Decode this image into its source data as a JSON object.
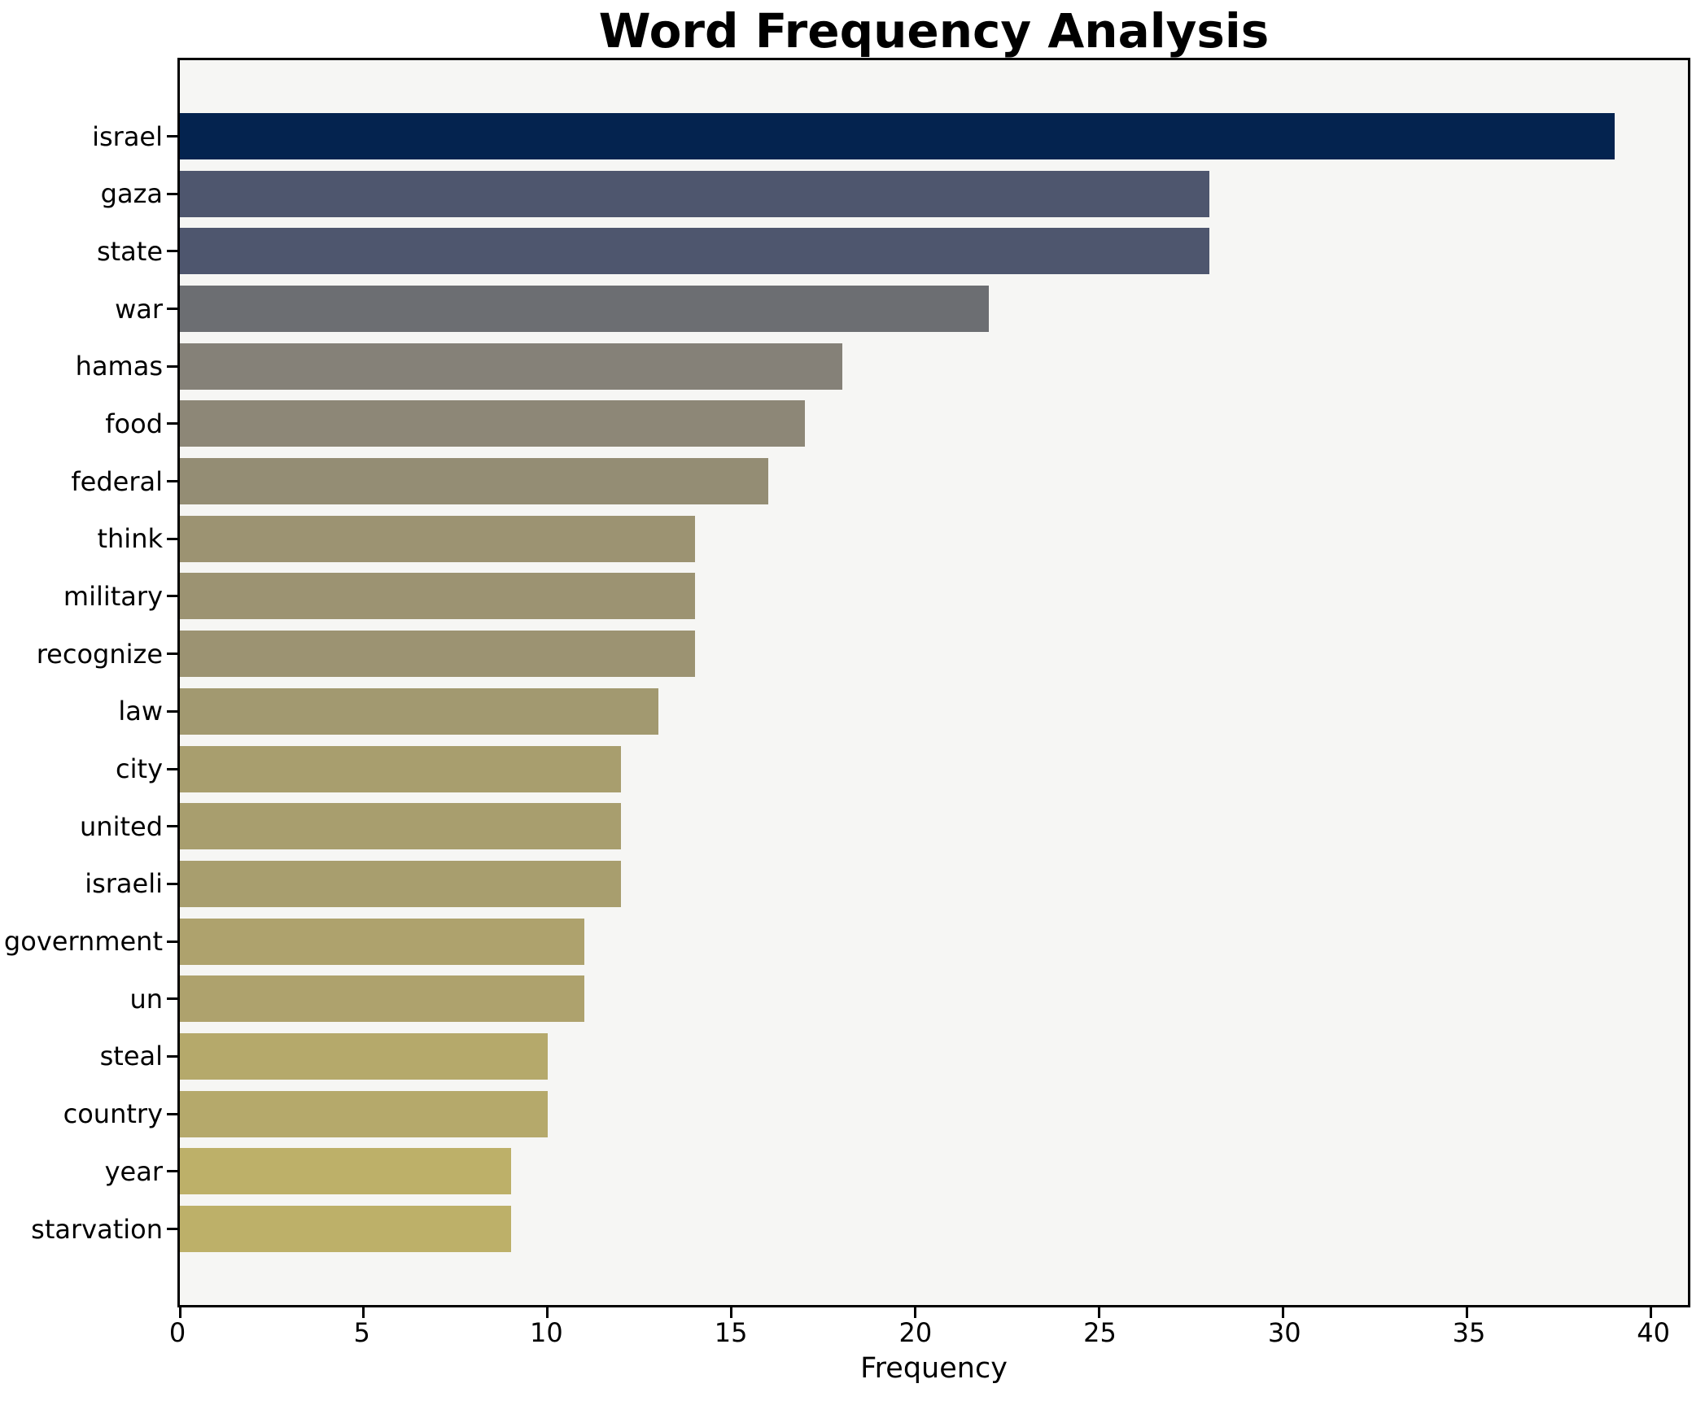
{
  "chart_data": {
    "type": "bar",
    "orientation": "horizontal",
    "title": "Word Frequency Analysis",
    "xlabel": "Frequency",
    "ylabel": "",
    "categories": [
      "israel",
      "gaza",
      "state",
      "war",
      "hamas",
      "food",
      "federal",
      "think",
      "military",
      "recognize",
      "law",
      "city",
      "united",
      "israeli",
      "government",
      "un",
      "steal",
      "country",
      "year",
      "starvation"
    ],
    "values": [
      39,
      28,
      28,
      22,
      18,
      17,
      16,
      14,
      14,
      14,
      13,
      12,
      12,
      12,
      11,
      11,
      10,
      10,
      9,
      9
    ],
    "bar_colors": [
      "#04234f",
      "#4e566e",
      "#4e566e",
      "#6c6e72",
      "#858178",
      "#8d8777",
      "#948d74",
      "#9c9372",
      "#9c9372",
      "#9c9372",
      "#a29970",
      "#a89e6e",
      "#a89e6e",
      "#a89e6e",
      "#aea26d",
      "#aea26d",
      "#b5a96b",
      "#b5a96b",
      "#bdb069",
      "#bdb069"
    ],
    "x_ticks": [
      0,
      5,
      10,
      15,
      20,
      25,
      30,
      35,
      40
    ],
    "xlim": [
      0,
      41
    ],
    "grid": false,
    "legend_position": "none"
  },
  "colors": {
    "figure_background": "#ffffff",
    "plot_background": "#f6f6f4",
    "spine": "#000000",
    "text": "#000000"
  }
}
